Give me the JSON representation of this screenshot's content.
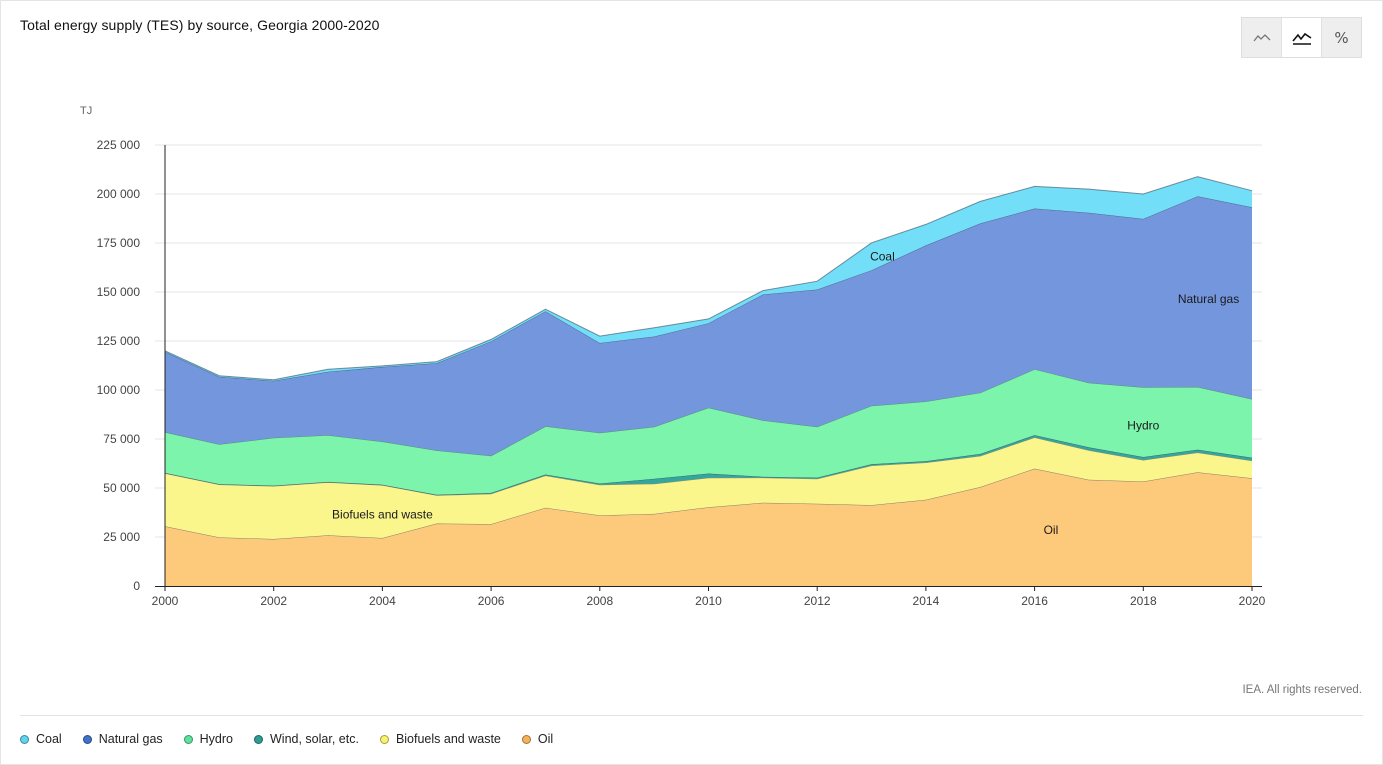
{
  "title": "Total energy supply (TES) by source, Georgia 2000-2020",
  "view_toggle": [
    {
      "name": "line-view",
      "icon": "line-chart-icon",
      "active": false
    },
    {
      "name": "area-view",
      "icon": "area-chart-icon",
      "active": true
    },
    {
      "name": "percent-view",
      "icon": "percent-icon",
      "label": "%",
      "active": false
    }
  ],
  "credit": "IEA. All rights reserved.",
  "colors": {
    "Oil": "#FDCA7B",
    "Biofuels and waste": "#FAF68C",
    "Wind, solar, etc.": "#35A69B",
    "Hydro": "#7DF4AC",
    "Natural gas": "#7396DC",
    "Coal": "#72DEF7"
  },
  "legend": [
    {
      "label": "Coal",
      "color": "#5FD3F1"
    },
    {
      "label": "Natural gas",
      "color": "#3F72C9"
    },
    {
      "label": "Hydro",
      "color": "#5BE39A"
    },
    {
      "label": "Wind, solar, etc.",
      "color": "#2E9C91"
    },
    {
      "label": "Biofuels and waste",
      "color": "#F8F36A"
    },
    {
      "label": "Oil",
      "color": "#F5B25A"
    }
  ],
  "chart_data": {
    "type": "area",
    "stacked": true,
    "ylabel": "TJ",
    "ylim": [
      0,
      225000
    ],
    "yticks": [
      0,
      25000,
      50000,
      75000,
      100000,
      125000,
      150000,
      175000,
      200000,
      225000
    ],
    "ytick_labels": [
      "0",
      "25 000",
      "50 000",
      "75 000",
      "100 000",
      "125 000",
      "150 000",
      "175 000",
      "200 000",
      "225 000"
    ],
    "xlim": [
      2000,
      2020
    ],
    "xticks": [
      2000,
      2002,
      2004,
      2006,
      2008,
      2010,
      2012,
      2014,
      2016,
      2018,
      2020
    ],
    "xtick_labels": [
      "2000",
      "2002",
      "2004",
      "2006",
      "2008",
      "2010",
      "2012",
      "2014",
      "2016",
      "2018",
      "2020"
    ],
    "x": [
      2000,
      2001,
      2002,
      2003,
      2004,
      2005,
      2006,
      2007,
      2008,
      2009,
      2010,
      2011,
      2012,
      2013,
      2014,
      2015,
      2016,
      2017,
      2018,
      2019,
      2020
    ],
    "series": [
      {
        "name": "Oil",
        "values": [
          30500,
          24800,
          24000,
          25900,
          24500,
          31900,
          31600,
          39900,
          36000,
          36800,
          40200,
          42500,
          42000,
          41300,
          44000,
          50500,
          59900,
          54200,
          53300,
          58000,
          55000
        ]
      },
      {
        "name": "Biofuels and waste",
        "values": [
          27000,
          27000,
          27000,
          27000,
          27000,
          14400,
          15500,
          16500,
          15700,
          15400,
          15000,
          12800,
          12700,
          20200,
          19000,
          15900,
          15900,
          15100,
          11000,
          10100,
          9000
        ]
      },
      {
        "name": "Wind, solar, etc.",
        "values": [
          200,
          200,
          200,
          200,
          200,
          300,
          400,
          500,
          600,
          2500,
          2200,
          400,
          600,
          700,
          700,
          1000,
          1200,
          1500,
          1500,
          1500,
          1500
        ]
      },
      {
        "name": "Hydro",
        "values": [
          20800,
          20300,
          24400,
          23900,
          22000,
          22600,
          19000,
          24600,
          25900,
          26500,
          33600,
          28900,
          26000,
          29800,
          30500,
          31200,
          33600,
          32900,
          35600,
          32000,
          29900
        ]
      },
      {
        "name": "Natural gas",
        "values": [
          41000,
          34500,
          29100,
          32300,
          38100,
          44500,
          58400,
          58700,
          45800,
          46100,
          43100,
          64100,
          70000,
          69100,
          79600,
          86400,
          82000,
          86700,
          85900,
          97300,
          97800
        ]
      },
      {
        "name": "Coal",
        "values": [
          500,
          500,
          500,
          1300,
          500,
          800,
          900,
          1000,
          3500,
          4500,
          2200,
          2000,
          4200,
          14000,
          10700,
          11200,
          11300,
          12100,
          12700,
          10000,
          8500
        ]
      }
    ],
    "annotations": [
      {
        "text": "Coal",
        "x": 2013.2,
        "y": 168000
      },
      {
        "text": "Natural gas",
        "x": 2019.2,
        "y": 146500
      },
      {
        "text": "Hydro",
        "x": 2018.0,
        "y": 82000
      },
      {
        "text": "Biofuels and waste",
        "x": 2004.0,
        "y": 36500
      },
      {
        "text": "Oil",
        "x": 2016.3,
        "y": 28500
      }
    ]
  }
}
